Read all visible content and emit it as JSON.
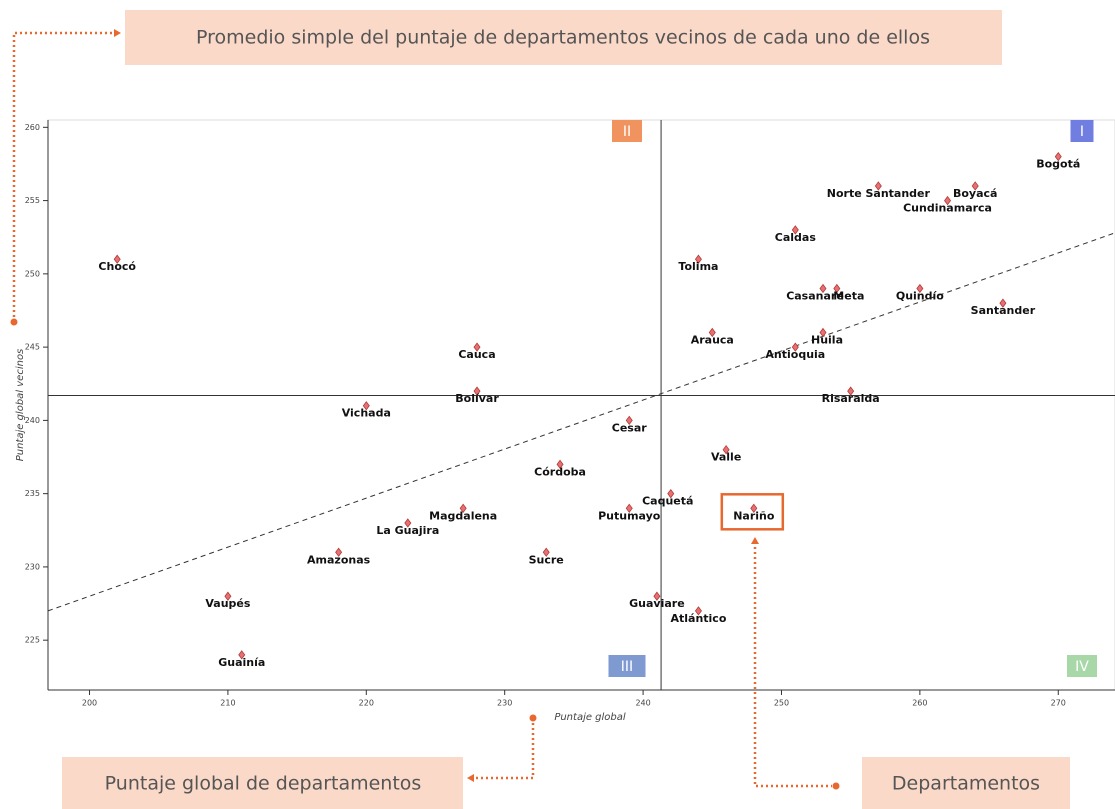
{
  "chart_data": {
    "type": "scatter",
    "xlabel": "Puntaje global",
    "ylabel": "Puntaje global vecinos",
    "xlim": [
      197,
      274.1
    ],
    "ylim": [
      221.6,
      260.5
    ],
    "xticks": [
      200,
      210,
      220,
      230,
      240,
      250,
      260,
      270
    ],
    "yticks": [
      225,
      230,
      235,
      240,
      245,
      250,
      255,
      260
    ],
    "color": "#e87070",
    "labels": [
      "Bogotá",
      "Norte Santander",
      "Boyacá",
      "Cundinamarca",
      "Caldas",
      "Chocó",
      "Tolima",
      "Casanare",
      "Meta",
      "Quindío",
      "Santander",
      "Arauca",
      "Huila",
      "Antioquia",
      "Cauca",
      "Bolívar",
      "Risaralda",
      "Vichada",
      "Cesar",
      "Valle",
      "Córdoba",
      "Caquetá",
      "Magdalena",
      "Putumayo",
      "Nariño",
      "La Guajira",
      "Amazonas",
      "Sucre",
      "Vaupés",
      "Guaviare",
      "Atlántico",
      "Guainía"
    ],
    "x": [
      270,
      257,
      264,
      262,
      251,
      202,
      244,
      253,
      254,
      260,
      266,
      245,
      253,
      251,
      228,
      228,
      255,
      220,
      239,
      246,
      234,
      242,
      227,
      239,
      248,
      223,
      218,
      233,
      210,
      241,
      244,
      211
    ],
    "y": [
      258,
      256,
      256,
      255,
      253,
      251,
      251,
      249,
      249,
      249,
      248,
      246,
      246,
      245,
      245,
      242,
      242,
      241,
      240,
      238,
      237,
      235,
      234,
      234,
      234,
      233,
      231,
      231,
      228,
      228,
      227,
      224
    ],
    "highlight_point": 24,
    "reference_lines": {
      "x": 241.3,
      "y": 241.7
    },
    "trend_line": {
      "x": [
        197,
        274.1
      ],
      "y": [
        227,
        252.8
      ]
    },
    "quadrants": [
      {
        "label": "I",
        "color": "#6f7ee0"
      },
      {
        "label": "II",
        "color": "#f0935e"
      },
      {
        "label": "III",
        "color": "#7f9ad0"
      },
      {
        "label": "IV",
        "color": "#a8d8a8"
      }
    ],
    "annotations": [
      "Promedio simple del puntaje de departamentos vecinos de cada uno de ellos",
      "Puntaje global de departamentos",
      "Departamentos"
    ]
  }
}
